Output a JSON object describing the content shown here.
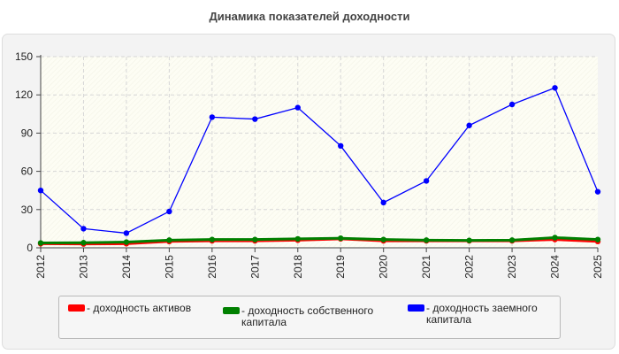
{
  "chart_data": {
    "type": "line",
    "title": "Динамика показателей доходности",
    "x": [
      "2012",
      "2013",
      "2014",
      "2015",
      "2016",
      "2017",
      "2018",
      "2019",
      "2020",
      "2021",
      "2022",
      "2023",
      "2024",
      "2025"
    ],
    "yticks": [
      "0",
      "30",
      "60",
      "90",
      "120",
      "150"
    ],
    "ylim": [
      0,
      150
    ],
    "grid": true,
    "legend_placement": "bottom",
    "series": [
      {
        "name": "- доходность активов",
        "color": "#ff0000",
        "values": [
          3.2,
          3.0,
          3.2,
          5.0,
          5.5,
          5.5,
          6.0,
          7.0,
          5.5,
          5.5,
          5.5,
          5.5,
          6.5,
          5.0
        ]
      },
      {
        "name": "- доходность собственного капитала",
        "color": "#008000",
        "values": [
          3.8,
          4.0,
          4.5,
          6.0,
          6.5,
          6.5,
          7.0,
          7.5,
          6.5,
          6.0,
          5.8,
          6.0,
          8.0,
          6.5
        ]
      },
      {
        "name": "- доходность заемного капитала",
        "color": "#0000ff",
        "values": [
          45,
          15,
          11.5,
          28.5,
          102.5,
          101,
          110,
          80,
          35.5,
          52.5,
          96,
          112.5,
          125.5,
          44
        ]
      }
    ]
  }
}
